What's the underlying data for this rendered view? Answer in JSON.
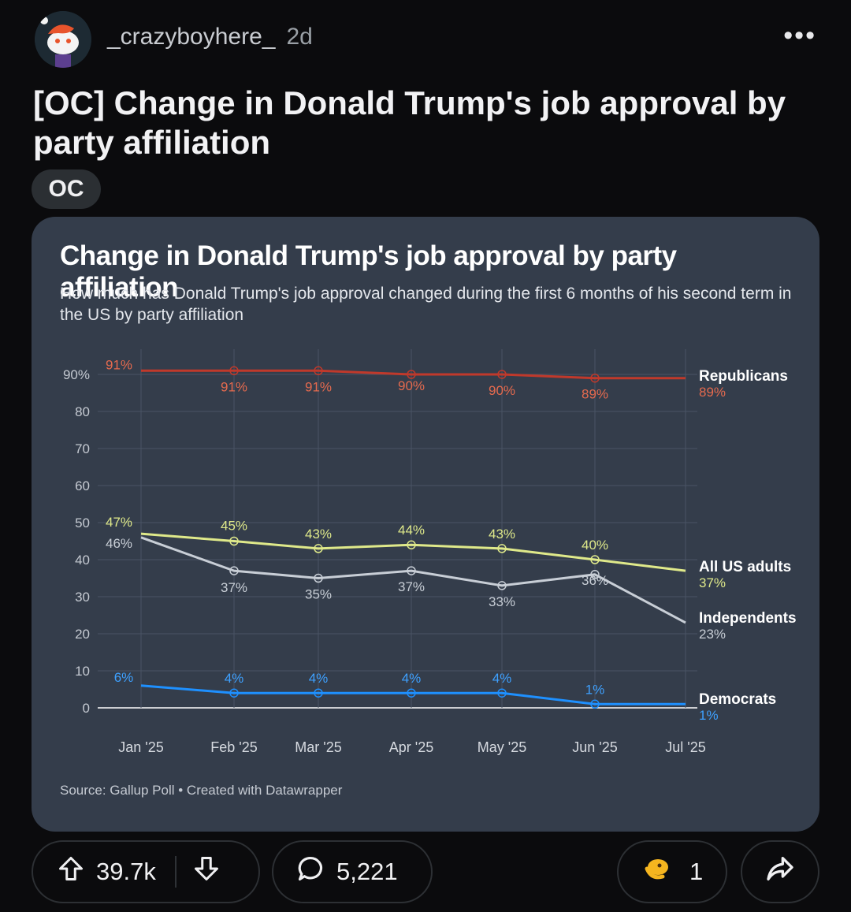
{
  "post": {
    "username": "_crazyboyhere_",
    "age": "2d",
    "more_label": "•••",
    "title": "[OC] Change in Donald Trump's job approval by party affiliation",
    "flair": "OC"
  },
  "actions": {
    "upvotes": "39.7k",
    "comments": "5,221",
    "awards": "1"
  },
  "icons": {
    "avatar": "reddit-snoo-avatar",
    "more": "more-options-icon",
    "upvote": "upvote-arrow-icon",
    "downvote": "downvote-arrow-icon",
    "comment": "comment-bubble-icon",
    "award": "award-icon",
    "share": "share-arrow-icon"
  },
  "colors": {
    "background": "#0b0b0d",
    "card": "#343d4b",
    "republicans": "#c0392b",
    "all_us_adults": "#dfe98a",
    "independents": "#c8ced6",
    "democrats": "#1e90ff"
  },
  "chart_data": {
    "type": "line",
    "title": "Change in Donald Trump's job approval by party affiliation",
    "subtitle": "How much has Donald Trump's job approval changed during the first 6 months of his second term in the US by party affiliation",
    "source": "Source: Gallup Poll • Created with Datawrapper",
    "x": [
      "Jan '25",
      "Feb '25",
      "Mar '25",
      "Apr '25",
      "May '25",
      "Jun '25",
      "Jul '25"
    ],
    "ylim": [
      0,
      90
    ],
    "yticks": [
      "90%",
      "80",
      "70",
      "60",
      "50",
      "40",
      "30",
      "20",
      "10",
      "0"
    ],
    "grid": true,
    "series": [
      {
        "name": "Republicans",
        "values": [
          91,
          91,
          91,
          90,
          90,
          89,
          89
        ],
        "labels": [
          "91%",
          "91%",
          "91%",
          "90%",
          "90%",
          "89%",
          "89%"
        ]
      },
      {
        "name": "All US adults",
        "values": [
          47,
          45,
          43,
          44,
          43,
          40,
          37
        ],
        "labels": [
          "47%",
          "45%",
          "43%",
          "44%",
          "43%",
          "40%",
          "37%"
        ]
      },
      {
        "name": "Independents",
        "values": [
          46,
          37,
          35,
          37,
          33,
          36,
          23
        ],
        "labels": [
          "46%",
          "37%",
          "35%",
          "37%",
          "33%",
          "36%",
          "23%"
        ]
      },
      {
        "name": "Democrats",
        "values": [
          6,
          4,
          4,
          4,
          4,
          1,
          1
        ],
        "labels": [
          "6%",
          "4%",
          "4%",
          "4%",
          "4%",
          "1%",
          "1%"
        ]
      }
    ]
  }
}
